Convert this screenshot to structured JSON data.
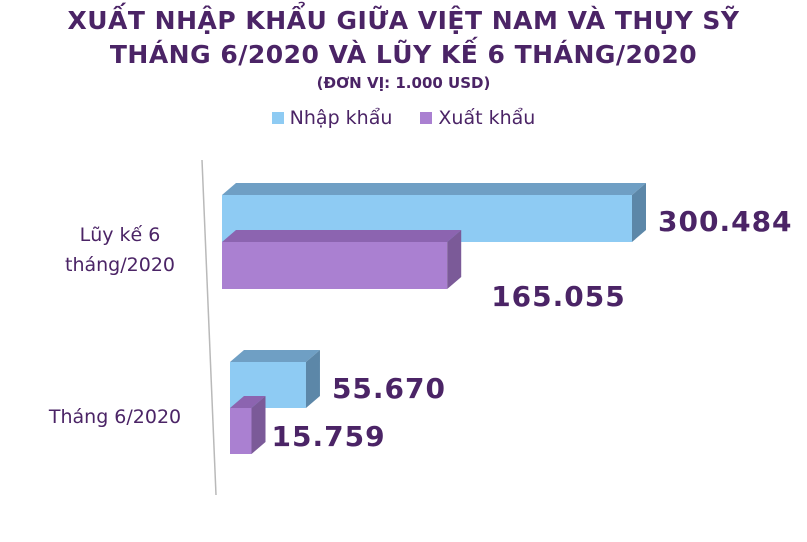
{
  "header": {
    "title_line1": "XUẤT NHẬP KHẨU GIỮA VIỆT NAM VÀ THỤY SỸ",
    "title_line2": "THÁNG 6/2020 VÀ LŨY KẾ 6 THÁNG/2020",
    "unit": "(ĐƠN VỊ: 1.000 USD)"
  },
  "colors": {
    "import": "#8ecbf3",
    "import_top": "#6f9fc4",
    "import_side": "#5c87a8",
    "export": "#aa80d1",
    "export_top": "#8c64b0",
    "export_side": "#7b5a98",
    "text": "#4b2466"
  },
  "chart_data": {
    "type": "bar",
    "orientation": "horizontal",
    "style": "3d",
    "categories": [
      "Lũy kế 6 tháng/2020",
      "Tháng 6/2020"
    ],
    "category_labels": [
      [
        "Lũy kế 6",
        "tháng/2020"
      ],
      [
        "Tháng 6/2020"
      ]
    ],
    "series": [
      {
        "name": "Nhập khẩu",
        "values": [
          300484,
          55670
        ],
        "labels": [
          "300.484",
          "55.670"
        ]
      },
      {
        "name": "Xuất khẩu",
        "values": [
          165055,
          15759
        ],
        "labels": [
          "165.055",
          "15.759"
        ]
      }
    ],
    "legend_position": "top",
    "grid": false,
    "xlim": [
      0,
      300484
    ]
  }
}
